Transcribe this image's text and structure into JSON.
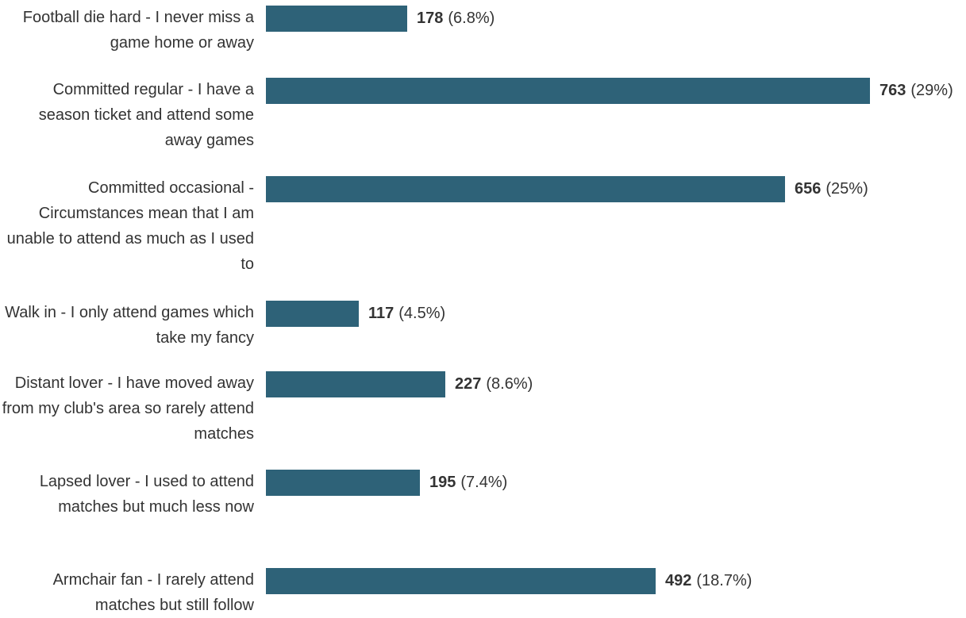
{
  "chart_data": {
    "type": "bar",
    "orientation": "horizontal",
    "bar_color": "#2e6278",
    "xlim": [
      0,
      763
    ],
    "grid": false,
    "legend": "none",
    "categories": [
      "Football die hard - I never miss a game home or away",
      "Committed regular - I have a season ticket and attend some away games",
      "Committed occasional - Circumstances mean that I am unable to attend as much as I used to",
      "Walk in - I only attend games which take my fancy",
      "Distant lover - I have moved away from my club's area so rarely attend matches",
      "Lapsed lover - I used to attend matches but much less now",
      "Armchair fan - I rarely attend matches but still follow"
    ],
    "values": [
      178,
      763,
      656,
      117,
      227,
      195,
      492
    ],
    "percent_labels": [
      "(6.8%)",
      "(29%)",
      "(25%)",
      "(4.5%)",
      "(8.6%)",
      "(7.4%)",
      "(18.7%)"
    ]
  }
}
